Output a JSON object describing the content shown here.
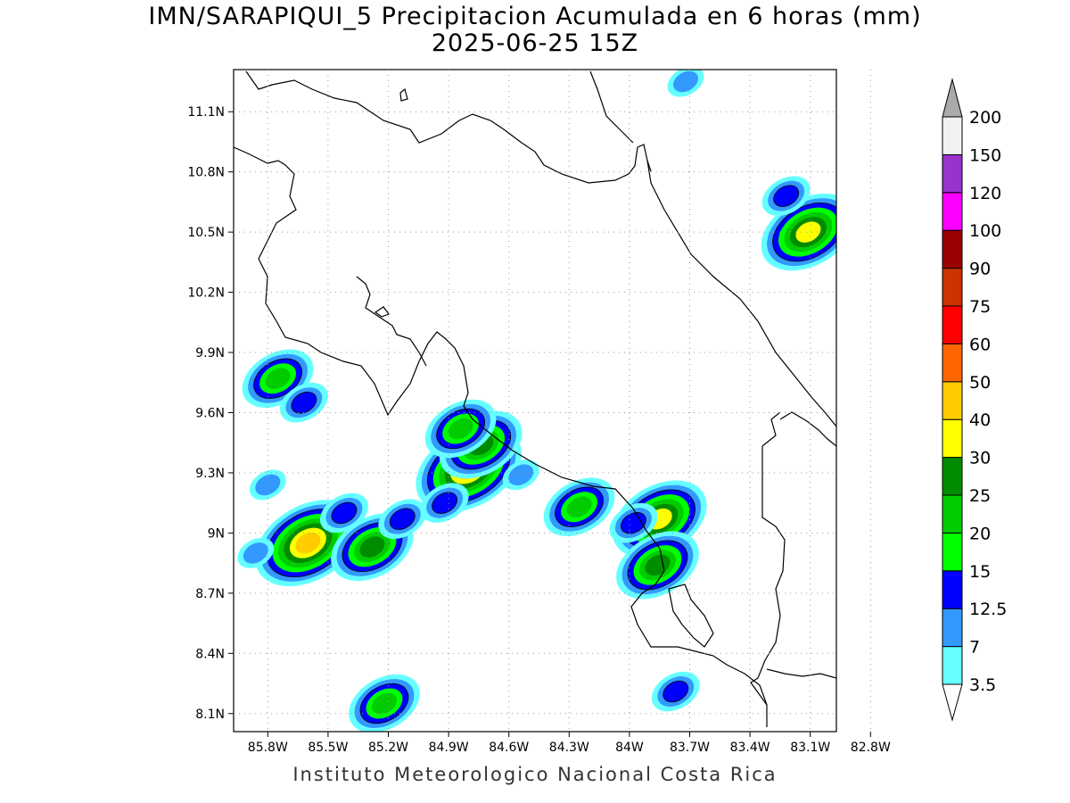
{
  "title": {
    "line1": "IMN/SARAPIQUI_5 Precipitacion Acumulada en 6 horas (mm)",
    "line2": "2025-06-25 15Z"
  },
  "footer": "Instituto Meteorologico Nacional Costa Rica",
  "map": {
    "lat_labels": [
      {
        "lat": 11.1,
        "label": "11.1N"
      },
      {
        "lat": 10.8,
        "label": "10.8N"
      },
      {
        "lat": 10.5,
        "label": "10.5N"
      },
      {
        "lat": 10.2,
        "label": "10.2N"
      },
      {
        "lat": 9.9,
        "label": "9.9N"
      },
      {
        "lat": 9.6,
        "label": "9.6N"
      },
      {
        "lat": 9.3,
        "label": "9.3N"
      },
      {
        "lat": 9.0,
        "label": "9N"
      },
      {
        "lat": 8.7,
        "label": "8.7N"
      },
      {
        "lat": 8.4,
        "label": "8.4N"
      },
      {
        "lat": 8.1,
        "label": "8.1N"
      }
    ],
    "lon_labels": [
      {
        "lon": -85.8,
        "label": "85.8W"
      },
      {
        "lon": -85.5,
        "label": "85.5W"
      },
      {
        "lon": -85.2,
        "label": "85.2W"
      },
      {
        "lon": -84.9,
        "label": "84.9W"
      },
      {
        "lon": -84.6,
        "label": "84.6W"
      },
      {
        "lon": -84.3,
        "label": "84.3W"
      },
      {
        "lon": -84.0,
        "label": "84W"
      },
      {
        "lon": -83.7,
        "label": "83.7W"
      },
      {
        "lon": -83.4,
        "label": "83.4W"
      },
      {
        "lon": -83.1,
        "label": "83.1W"
      },
      {
        "lon": -82.8,
        "label": "82.8W"
      }
    ],
    "lon_range": [
      -85.97,
      -82.97
    ],
    "lat_range": [
      8.01,
      11.31
    ],
    "grid": true
  },
  "colorbar": {
    "levels": [
      {
        "label": "3.5",
        "color": "#66ffff"
      },
      {
        "label": "7",
        "color": "#3399ff"
      },
      {
        "label": "12.5",
        "color": "#0000ff"
      },
      {
        "label": "15",
        "color": "#00ff00"
      },
      {
        "label": "20",
        "color": "#00cc00"
      },
      {
        "label": "25",
        "color": "#008c00"
      },
      {
        "label": "30",
        "color": "#ffff00"
      },
      {
        "label": "40",
        "color": "#ffcc00"
      },
      {
        "label": "50",
        "color": "#ff6600"
      },
      {
        "label": "60",
        "color": "#ff0000"
      },
      {
        "label": "75",
        "color": "#cc3300"
      },
      {
        "label": "90",
        "color": "#990000"
      },
      {
        "label": "100",
        "color": "#ff00ff"
      },
      {
        "label": "120",
        "color": "#9933cc"
      },
      {
        "label": "150",
        "color": "#f2f2f2"
      },
      {
        "label": "200",
        "color": "#aaaaaa"
      }
    ]
  },
  "rain_cells": [
    {
      "lon": -85.6,
      "lat": 8.95,
      "peak": 40
    },
    {
      "lon": -85.28,
      "lat": 8.93,
      "peak": 25
    },
    {
      "lon": -85.42,
      "lat": 9.1,
      "peak": 12.5
    },
    {
      "lon": -84.8,
      "lat": 9.32,
      "peak": 40
    },
    {
      "lon": -84.74,
      "lat": 9.44,
      "peak": 25
    },
    {
      "lon": -84.84,
      "lat": 9.52,
      "peak": 20
    },
    {
      "lon": -85.75,
      "lat": 9.77,
      "peak": 20
    },
    {
      "lon": -85.62,
      "lat": 9.65,
      "peak": 12.5
    },
    {
      "lon": -84.25,
      "lat": 9.13,
      "peak": 20
    },
    {
      "lon": -83.85,
      "lat": 9.07,
      "peak": 30
    },
    {
      "lon": -83.86,
      "lat": 8.84,
      "peak": 25
    },
    {
      "lon": -83.98,
      "lat": 9.05,
      "peak": 12.5
    },
    {
      "lon": -83.11,
      "lat": 10.5,
      "peak": 30
    },
    {
      "lon": -83.22,
      "lat": 10.68,
      "peak": 12.5
    },
    {
      "lon": -85.22,
      "lat": 8.15,
      "peak": 20
    },
    {
      "lon": -83.77,
      "lat": 8.21,
      "peak": 12.5
    },
    {
      "lon": -85.13,
      "lat": 9.07,
      "peak": 12.5
    },
    {
      "lon": -84.92,
      "lat": 9.15,
      "peak": 12.5
    },
    {
      "lon": -84.54,
      "lat": 9.29,
      "peak": 7
    },
    {
      "lon": -85.86,
      "lat": 8.9,
      "peak": 7
    },
    {
      "lon": -85.8,
      "lat": 9.24,
      "peak": 7
    },
    {
      "lon": -83.72,
      "lat": 11.25,
      "peak": 7
    }
  ]
}
